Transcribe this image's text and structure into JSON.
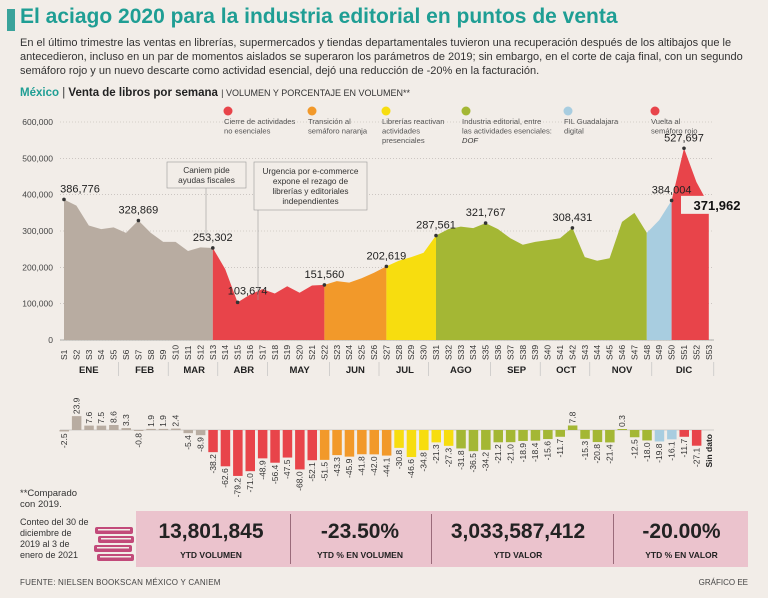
{
  "title": "El aciago 2020 para la industria editorial en puntos de venta",
  "intro": "En el último trimestre las ventas en librerías, supermercados y tiendas departamentales tuvieron una recuperación después de los altibajos que le antecedieron, incluso en un par de momentos aislados se superaron los parámetros de 2019; sin embargo, en el corte de caja final, con un segundo semáforo rojo y un nuevo descarte como actividad esencial, dejó una reducción de -20% en la facturación.",
  "subtitle": {
    "country": "México",
    "sep": "|",
    "chart": "Venta de libros por semana",
    "units": "| VOLUMEN Y PORCENTAJE EN VOLUMEN**"
  },
  "colors": {
    "gray": "#b8aca1",
    "red": "#e8444a",
    "orange": "#f2992a",
    "yellow": "#f7dd0f",
    "green": "#a4b734",
    "blue": "#a8cde0"
  },
  "legend": [
    {
      "label": "Cierre de actividades\nno esenciales",
      "color": "#e8444a"
    },
    {
      "label": "Transición al\nsemáforo naranja",
      "color": "#f2992a"
    },
    {
      "label": "Librerías reactivan\nactividades\npresenciales",
      "color": "#f7dd0f"
    },
    {
      "label": "Industria editorial, entre\nlas actividades esenciales:",
      "extra": "DOF",
      "color": "#a4b734"
    },
    {
      "label": "FIL Guadalajara\ndigital",
      "color": "#a8cde0"
    },
    {
      "label": "Vuelta al\nsemáforo rojo",
      "color": "#e8444a"
    }
  ],
  "annotations": [
    {
      "text": "Caniem pide\nayudas fiscales"
    },
    {
      "text": "Urgencia por e-commerce\nexpone el rezago de\nlibrerías y editoriales\nindependientes"
    }
  ],
  "footnote": "**Comparado con 2019.",
  "period": "Conteo del 30 de diciembre de 2019 al 3 de enero de 2021",
  "stats": [
    {
      "value": "13,801,845",
      "label": "YTD VOLUMEN"
    },
    {
      "value": "-23.50%",
      "label": "YTD % EN VOLUMEN"
    },
    {
      "value": "3,033,587,412",
      "label": "YTD VALOR"
    },
    {
      "value": "-20.00%",
      "label": "YTD % EN VALOR"
    }
  ],
  "source": "FUENTE: NIELSEN BOOKSCAN MÉXICO Y CANIEM",
  "credit": "GRÁFICO EE",
  "chart_data": {
    "type": "area",
    "ylim": [
      0,
      600000
    ],
    "yticks": [
      "0",
      "100,000",
      "200,000",
      "300,000",
      "400,000",
      "500,000",
      "600,000"
    ],
    "weeks": [
      "S1",
      "S2",
      "S3",
      "S4",
      "S5",
      "S6",
      "S7",
      "S8",
      "S9",
      "S10",
      "S11",
      "S12",
      "S13",
      "S14",
      "S15",
      "S16",
      "S17",
      "S18",
      "S19",
      "S20",
      "S21",
      "S22",
      "S23",
      "S24",
      "S25",
      "S26",
      "S27",
      "S28",
      "S29",
      "S30",
      "S31",
      "S32",
      "S33",
      "S34",
      "S35",
      "S36",
      "S37",
      "S38",
      "S39",
      "S40",
      "S41",
      "S42",
      "S43",
      "S44",
      "S45",
      "S46",
      "S47",
      "S48",
      "S49",
      "S50",
      "S51",
      "S52",
      "S53"
    ],
    "months": [
      {
        "label": "ENE",
        "from": 0,
        "to": 4
      },
      {
        "label": "FEB",
        "from": 5,
        "to": 8
      },
      {
        "label": "MAR",
        "from": 9,
        "to": 12
      },
      {
        "label": "ABR",
        "from": 13,
        "to": 16
      },
      {
        "label": "MAY",
        "from": 17,
        "to": 21
      },
      {
        "label": "JUN",
        "from": 22,
        "to": 25
      },
      {
        "label": "JUL",
        "from": 26,
        "to": 29
      },
      {
        "label": "AGO",
        "from": 30,
        "to": 34
      },
      {
        "label": "SEP",
        "from": 35,
        "to": 38
      },
      {
        "label": "OCT",
        "from": 39,
        "to": 42
      },
      {
        "label": "NOV",
        "from": 43,
        "to": 47
      },
      {
        "label": "DIC",
        "from": 48,
        "to": 52
      }
    ],
    "volume": [
      386776,
      370000,
      315000,
      305000,
      310000,
      295000,
      328869,
      295000,
      270000,
      270000,
      245000,
      255000,
      253302,
      195000,
      103674,
      125000,
      140000,
      128000,
      148000,
      130000,
      150000,
      151560,
      162000,
      158000,
      170000,
      185000,
      202619,
      218000,
      228000,
      240000,
      287561,
      305000,
      312000,
      308000,
      321767,
      305000,
      280000,
      262000,
      270000,
      275000,
      280000,
      308431,
      228000,
      218000,
      225000,
      325000,
      350000,
      295000,
      330000,
      384004,
      527697,
      435000,
      371962
    ],
    "segments": [
      {
        "from": 0,
        "to": 12,
        "color": "gray"
      },
      {
        "from": 12,
        "to": 21,
        "color": "red"
      },
      {
        "from": 21,
        "to": 26,
        "color": "orange"
      },
      {
        "from": 26,
        "to": 30,
        "color": "yellow"
      },
      {
        "from": 30,
        "to": 47,
        "color": "green"
      },
      {
        "from": 47,
        "to": 49,
        "color": "blue"
      },
      {
        "from": 49,
        "to": 52,
        "color": "red"
      }
    ],
    "labeled_points": [
      {
        "week": 0,
        "label": "386,776"
      },
      {
        "week": 6,
        "label": "328,869"
      },
      {
        "week": 12,
        "label": "253,302"
      },
      {
        "week": 14,
        "label": "103,674"
      },
      {
        "week": 21,
        "label": "151,560"
      },
      {
        "week": 26,
        "label": "202,619"
      },
      {
        "week": 30,
        "label": "287,561"
      },
      {
        "week": 34,
        "label": "321,767"
      },
      {
        "week": 41,
        "label": "308,431"
      },
      {
        "week": 49,
        "label": "384,004"
      },
      {
        "week": 50,
        "label": "527,697"
      },
      {
        "week": 52,
        "label": "371,962"
      }
    ],
    "pct_change": [
      -2.5,
      23.9,
      7.6,
      7.5,
      8.6,
      3.3,
      -0.8,
      1.9,
      1.9,
      2.4,
      -5.4,
      -8.9,
      -38.2,
      -62.6,
      -79.2,
      -71.0,
      -48.9,
      -56.4,
      -47.5,
      -68.0,
      -52.1,
      -51.5,
      -43.3,
      -45.9,
      -41.8,
      -42.0,
      -44.1,
      -30.8,
      -46.6,
      -34.8,
      -21.3,
      -27.3,
      -31.8,
      -36.5,
      -34.2,
      -21.2,
      -21.0,
      -18.9,
      -18.4,
      -15.6,
      -11.7,
      7.8,
      -15.3,
      -20.8,
      -21.4,
      0.3,
      -12.5,
      -18.0,
      -19.8,
      -16.1,
      -11.7,
      -27.1,
      null
    ],
    "pct_labels": [
      "-2.5",
      "23.9",
      "7.6",
      "7.5",
      "8.6",
      "3.3",
      "-0.8",
      "1.9",
      "1.9",
      "2.4",
      "-5.4",
      "-8.9",
      "-38.2",
      "-62.6",
      "-79.2",
      "-71.0",
      "-48.9",
      "-56.4",
      "-47.5",
      "-68.0",
      "-52.1",
      "-51.5",
      "-43.3",
      "-45.9",
      "-41.8",
      "-42.0",
      "-44.1",
      "-30.8",
      "-46.6",
      "-34.8",
      "-21.3",
      "-27.3",
      "-31.8",
      "-36.5",
      "-34.2",
      "-21.2",
      "-21.0",
      "-18.9",
      "-18.4",
      "-15.6",
      "-11.7",
      "7.8",
      "-15.3",
      "-20.8",
      "-21.4",
      "0.3",
      "-12.5",
      "-18.0",
      "-19.8",
      "-16.1",
      "-11.7",
      "-27.1",
      "Sin dato"
    ],
    "pct_colors": [
      "gray",
      "gray",
      "gray",
      "gray",
      "gray",
      "gray",
      "gray",
      "gray",
      "gray",
      "gray",
      "gray",
      "gray",
      "red",
      "red",
      "red",
      "red",
      "red",
      "red",
      "red",
      "red",
      "red",
      "orange",
      "orange",
      "orange",
      "orange",
      "orange",
      "orange",
      "yellow",
      "yellow",
      "yellow",
      "yellow",
      "yellow",
      "green",
      "green",
      "green",
      "green",
      "green",
      "green",
      "green",
      "green",
      "green",
      "green",
      "green",
      "green",
      "green",
      "green",
      "green",
      "green",
      "blue",
      "blue",
      "red",
      "red",
      "red"
    ]
  }
}
